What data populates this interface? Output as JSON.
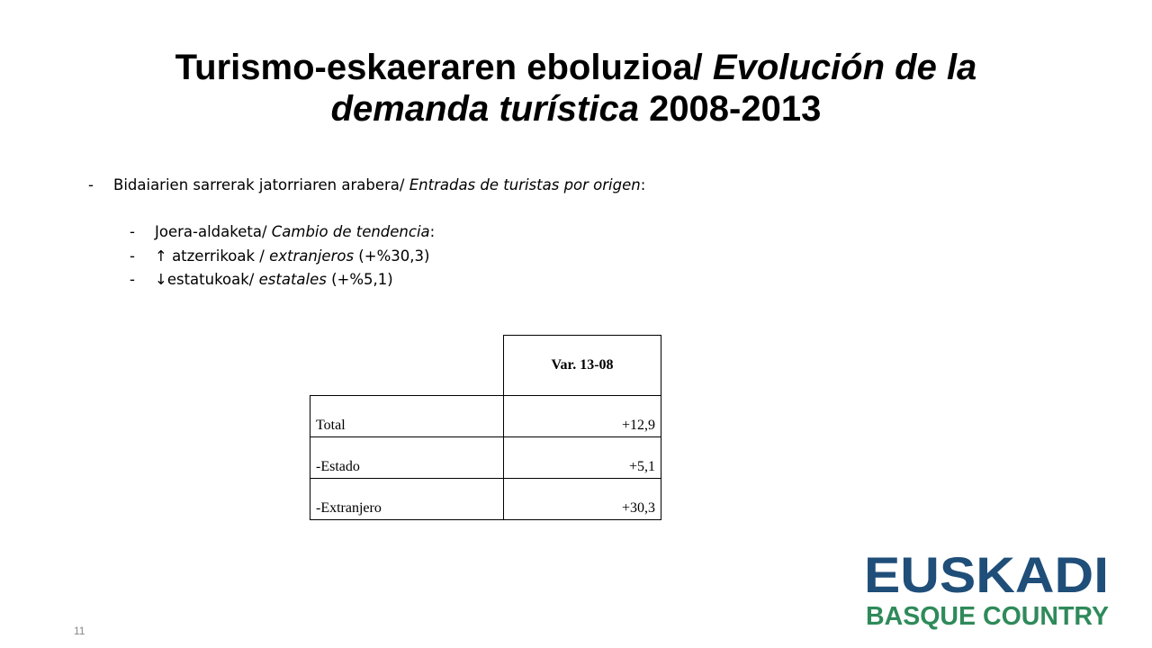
{
  "slide": {
    "title_bold": "Turismo-eskaeraren eboluzioa/ ",
    "title_italic_1": "Evolución de la",
    "title_italic_2": "demanda turística",
    "title_years": " 2008-2013",
    "page_number": "11"
  },
  "bullets": {
    "main": {
      "dash": "-",
      "text": "Bidaiarien sarrerak jatorriaren arabera/ ",
      "italic": "Entradas de turistas por origen",
      "suffix": ":"
    },
    "sub": [
      {
        "dash": "-",
        "text": "Joera-aldaketa/ ",
        "italic": "Cambio de tendencia",
        "suffix": ":"
      },
      {
        "dash": "-",
        "text": "↑ atzerrikoak / ",
        "italic": "extranjeros",
        "suffix": " (+%30,3)"
      },
      {
        "dash": "-",
        "text": "↓estatukoak/ ",
        "italic": "estatales",
        "suffix": " (+%5,1)"
      }
    ]
  },
  "table": {
    "header": "Var. 13-08",
    "rows": [
      {
        "label": "Total",
        "value": "+12,9"
      },
      {
        "label": "-Estado",
        "value": "+5,1"
      },
      {
        "label": "-Extranjero",
        "value": "+30,3"
      }
    ]
  },
  "logo": {
    "line1": "EUSKADI",
    "line2": "BASQUE COUNTRY",
    "colors": {
      "blue": "#1f4e79",
      "green": "#2f8a5a"
    }
  }
}
